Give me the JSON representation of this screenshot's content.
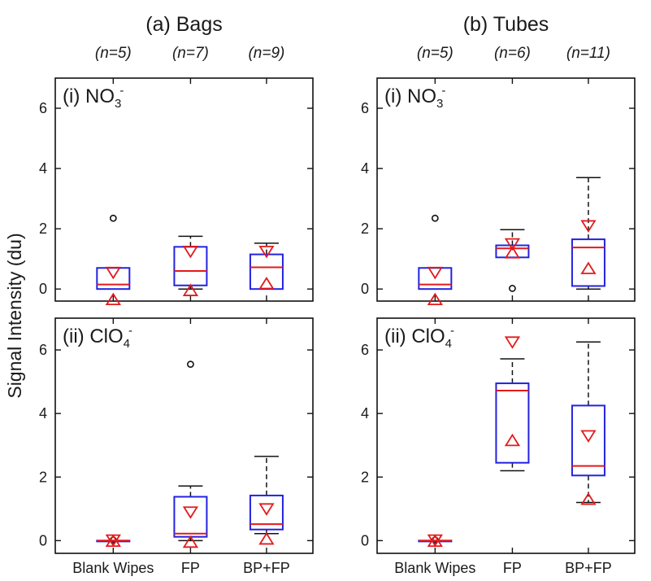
{
  "ylabel": "Signal Intensity (du)",
  "colors": {
    "box": "#2323e0",
    "median": "#e31a1c",
    "marker": "#e31a1c",
    "outlier": "#111111",
    "axis": "#111111"
  },
  "chart_data": {
    "type": "box",
    "ylabel": "Signal Intensity (du)",
    "yticks": [
      0,
      2,
      4,
      6
    ],
    "ylim": [
      -0.4,
      7
    ],
    "categories": [
      "Blank Wipes",
      "FP",
      "BP+FP"
    ],
    "groups": [
      {
        "title": "(a) Bags",
        "n_labels": [
          "(n=5)",
          "(n=7)",
          "(n=9)"
        ],
        "panels": [
          {
            "label_main": "(i) NO",
            "label_sub": "3",
            "label_sup": "-",
            "boxes": [
              {
                "category": "Blank Wipes",
                "whisker_low": 0,
                "q1": 0,
                "median": 0.15,
                "q3": 0.7,
                "whisker_high": 0.7,
                "outliers": [
                  2.35
                ],
                "mean_upper": 0.55,
                "mean_lower": -0.35
              },
              {
                "category": "FP",
                "whisker_low": 0,
                "q1": 0.12,
                "median": 0.6,
                "q3": 1.4,
                "whisker_high": 1.75,
                "outliers": [],
                "mean_upper": 1.25,
                "mean_lower": -0.05
              },
              {
                "category": "BP+FP",
                "whisker_low": 0,
                "q1": 0,
                "median": 0.72,
                "q3": 1.15,
                "whisker_high": 1.52,
                "outliers": [],
                "mean_upper": 1.25,
                "mean_lower": 0.18
              }
            ]
          },
          {
            "label_main": "(ii) ClO",
            "label_sub": "4",
            "label_sup": "-",
            "boxes": [
              {
                "category": "Blank Wipes",
                "whisker_low": 0,
                "q1": 0,
                "median": 0,
                "q3": 0,
                "whisker_high": 0,
                "outliers": [
                  0.02
                ],
                "mean_upper": 0.02,
                "mean_lower": -0.02
              },
              {
                "category": "FP",
                "whisker_low": 0,
                "q1": 0.12,
                "median": 0.22,
                "q3": 1.38,
                "whisker_high": 1.72,
                "outliers": [
                  5.55
                ],
                "mean_upper": 0.9,
                "mean_lower": -0.05
              },
              {
                "category": "BP+FP",
                "whisker_low": 0.22,
                "q1": 0.35,
                "median": 0.52,
                "q3": 1.42,
                "whisker_high": 2.65,
                "outliers": [],
                "mean_upper": 1.0,
                "mean_lower": 0.05
              }
            ]
          }
        ]
      },
      {
        "title": "(b)  Tubes",
        "n_labels": [
          "(n=5)",
          "(n=6)",
          "(n=11)"
        ],
        "panels": [
          {
            "label_main": "(i) NO",
            "label_sub": "3",
            "label_sup": "-",
            "boxes": [
              {
                "category": "Blank Wipes",
                "whisker_low": 0,
                "q1": 0,
                "median": 0.15,
                "q3": 0.7,
                "whisker_high": 0.7,
                "outliers": [
                  2.35
                ],
                "mean_upper": 0.55,
                "mean_lower": -0.35
              },
              {
                "category": "FP",
                "whisker_low": 1.05,
                "q1": 1.05,
                "median": 1.35,
                "q3": 1.45,
                "whisker_high": 1.97,
                "outliers": [
                  0.02
                ],
                "mean_upper": 1.5,
                "mean_lower": 1.2
              },
              {
                "category": "BP+FP",
                "whisker_low": 0,
                "q1": 0.1,
                "median": 1.38,
                "q3": 1.65,
                "whisker_high": 3.7,
                "outliers": [],
                "mean_upper": 2.1,
                "mean_lower": 0.68
              }
            ]
          },
          {
            "label_main": "(ii) ClO",
            "label_sub": "4",
            "label_sup": "-",
            "boxes": [
              {
                "category": "Blank Wipes",
                "whisker_low": 0,
                "q1": 0,
                "median": 0,
                "q3": 0,
                "whisker_high": 0,
                "outliers": [
                  0.02
                ],
                "mean_upper": 0.02,
                "mean_lower": -0.02
              },
              {
                "category": "FP",
                "whisker_low": 2.2,
                "q1": 2.45,
                "median": 4.72,
                "q3": 4.95,
                "whisker_high": 5.72,
                "outliers": [],
                "mean_upper": 6.25,
                "mean_lower": 3.15
              },
              {
                "category": "BP+FP",
                "whisker_low": 1.2,
                "q1": 2.05,
                "median": 2.35,
                "q3": 4.25,
                "whisker_high": 6.25,
                "outliers": [],
                "mean_upper": 3.3,
                "mean_lower": 1.3
              }
            ]
          }
        ]
      }
    ]
  }
}
